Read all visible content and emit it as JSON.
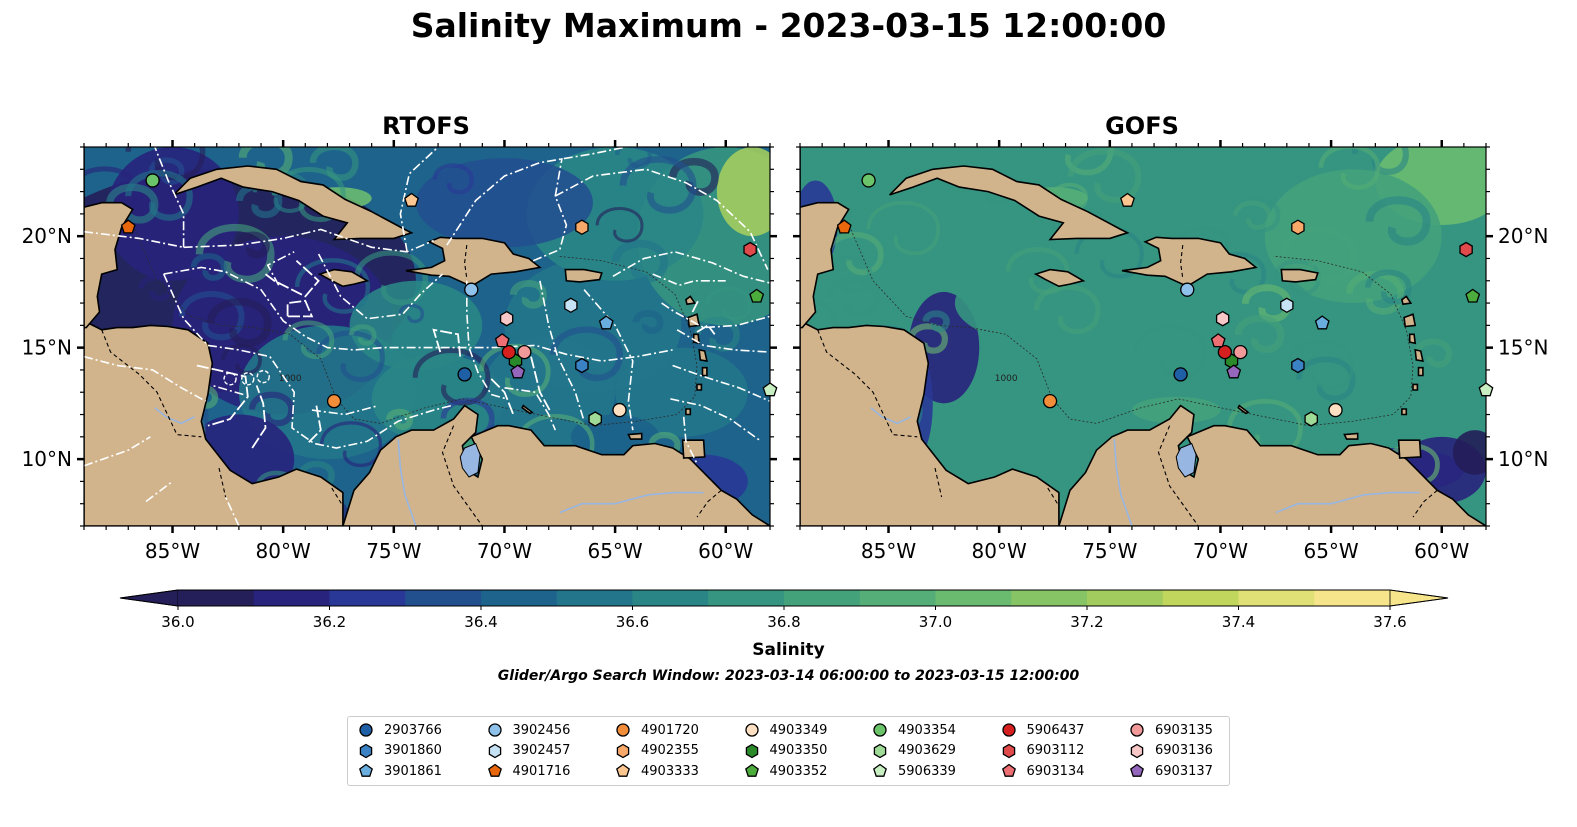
{
  "title": "Salinity Maximum - 2023-03-15 12:00:00",
  "panels": [
    {
      "title": "RTOFS",
      "key": "rtofs"
    },
    {
      "title": "GOFS",
      "key": "gofs"
    }
  ],
  "map": {
    "lon_range": [
      -89,
      -58
    ],
    "lat_range": [
      7,
      24
    ],
    "lon_ticks": [
      -85,
      -80,
      -75,
      -70,
      -65,
      -60
    ],
    "lon_tick_labels": [
      "85°W",
      "80°W",
      "75°W",
      "70°W",
      "65°W",
      "60°W"
    ],
    "lat_ticks": [
      20,
      15,
      10
    ],
    "lat_tick_labels": [
      "20°N",
      "15°N",
      "10°N"
    ],
    "land_color": "#d2b48c",
    "river_color": "#97b6e1",
    "eez_line_color": "#ffffff",
    "contour_label": "1000"
  },
  "colorbar": {
    "label": "Salinity",
    "min": 36.0,
    "max": 37.6,
    "step": 0.1,
    "ticks": [
      "36.0",
      "36.2",
      "36.4",
      "36.6",
      "36.8",
      "37.0",
      "37.2",
      "37.4",
      "37.6"
    ],
    "colors": [
      "#241e59",
      "#28237c",
      "#293896",
      "#22508f",
      "#1d638b",
      "#22758a",
      "#2a8686",
      "#369580",
      "#44a27b",
      "#55ae77",
      "#6abb70",
      "#86c466",
      "#a2cc5e",
      "#c0d65c",
      "#dfe075",
      "#f6e58b"
    ],
    "extend": "both"
  },
  "search_window": "Glider/Argo Search Window: 2023-03-14 06:00:00 to 2023-03-15 12:00:00",
  "legend": [
    {
      "id": "2903766",
      "color": "#1f5fa5",
      "marker": "circle"
    },
    {
      "id": "3901860",
      "color": "#3a82c4",
      "marker": "hexagon"
    },
    {
      "id": "3901861",
      "color": "#6aaee0",
      "marker": "pentagon"
    },
    {
      "id": "3902456",
      "color": "#8fc2ea",
      "marker": "circle"
    },
    {
      "id": "3902457",
      "color": "#c6e2f5",
      "marker": "hexagon"
    },
    {
      "id": "4901716",
      "color": "#e8660c",
      "marker": "pentagon"
    },
    {
      "id": "4901720",
      "color": "#f28d3a",
      "marker": "circle"
    },
    {
      "id": "4902355",
      "color": "#f8a868",
      "marker": "hexagon"
    },
    {
      "id": "4903333",
      "color": "#fbc690",
      "marker": "pentagon"
    },
    {
      "id": "4903349",
      "color": "#fde0c2",
      "marker": "circle"
    },
    {
      "id": "4903350",
      "color": "#2a8a2a",
      "marker": "hexagon"
    },
    {
      "id": "4903352",
      "color": "#4cad3c",
      "marker": "pentagon"
    },
    {
      "id": "4903354",
      "color": "#6cc46a",
      "marker": "circle"
    },
    {
      "id": "4903629",
      "color": "#9edb96",
      "marker": "hexagon"
    },
    {
      "id": "5906339",
      "color": "#c8efc2",
      "marker": "pentagon"
    },
    {
      "id": "5906437",
      "color": "#d62020",
      "marker": "circle"
    },
    {
      "id": "6903112",
      "color": "#e04a4a",
      "marker": "hexagon"
    },
    {
      "id": "6903134",
      "color": "#ec6f73",
      "marker": "pentagon"
    },
    {
      "id": "6903135",
      "color": "#f29a9a",
      "marker": "circle"
    },
    {
      "id": "6903136",
      "color": "#f8c8c8",
      "marker": "hexagon"
    },
    {
      "id": "6903137",
      "color": "#9467bd",
      "marker": "pentagon"
    }
  ],
  "floats": [
    {
      "id": "2903766",
      "lon": -71.8,
      "lat": 13.8
    },
    {
      "id": "3901860",
      "lon": -66.5,
      "lat": 14.2
    },
    {
      "id": "3901861",
      "lon": -65.4,
      "lat": 16.1
    },
    {
      "id": "3902456",
      "lon": -71.5,
      "lat": 17.6
    },
    {
      "id": "3902457",
      "lon": -67.0,
      "lat": 16.9
    },
    {
      "id": "4901716",
      "lon": -87.0,
      "lat": 20.4
    },
    {
      "id": "4901720",
      "lon": -77.7,
      "lat": 12.6
    },
    {
      "id": "4902355",
      "lon": -66.5,
      "lat": 20.4
    },
    {
      "id": "4903333",
      "lon": -74.2,
      "lat": 21.6
    },
    {
      "id": "4903349",
      "lon": -64.8,
      "lat": 12.2
    },
    {
      "id": "4903350",
      "lon": -69.5,
      "lat": 14.4
    },
    {
      "id": "4903352",
      "lon": -58.6,
      "lat": 17.3
    },
    {
      "id": "4903354",
      "lon": -85.9,
      "lat": 22.5
    },
    {
      "id": "4903629",
      "lon": -65.9,
      "lat": 11.8
    },
    {
      "id": "5906339",
      "lon": -58.0,
      "lat": 13.1
    },
    {
      "id": "5906437",
      "lon": -69.8,
      "lat": 14.8
    },
    {
      "id": "6903112",
      "lon": -58.9,
      "lat": 19.4
    },
    {
      "id": "6903134",
      "lon": -70.1,
      "lat": 15.3
    },
    {
      "id": "6903135",
      "lon": -69.1,
      "lat": 14.8
    },
    {
      "id": "6903136",
      "lon": -69.9,
      "lat": 16.3
    },
    {
      "id": "6903137",
      "lon": -69.4,
      "lat": 13.9
    }
  ]
}
